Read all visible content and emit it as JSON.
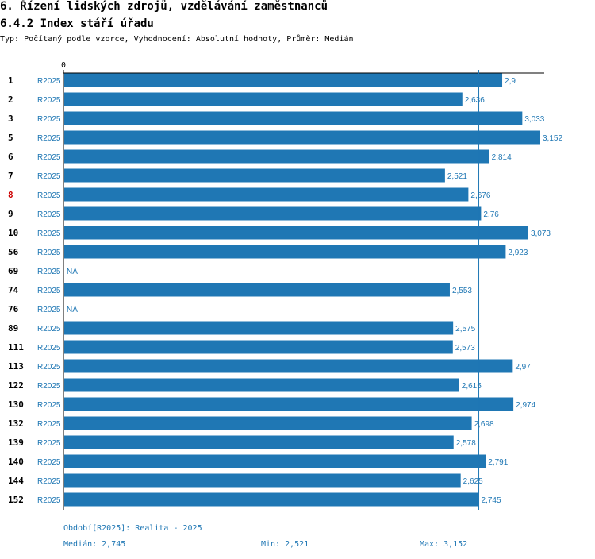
{
  "header": {
    "title": "6. Řízení lidských zdrojů, vzdělávání zaměstnanců",
    "subtitle": "6.4.2 Index stáří úřadu",
    "meta": "Typ: Počítaný podle vzorce, Vyhodnocení: Absolutní hodnoty, Průměr: Medián"
  },
  "chart_data": {
    "type": "bar",
    "orientation": "horizontal",
    "axis_zero_label": "0",
    "xlim": [
      0,
      3.2
    ],
    "median": 2.745,
    "highlight_category": "8",
    "categories": [
      "1",
      "2",
      "3",
      "5",
      "6",
      "7",
      "8",
      "9",
      "10",
      "56",
      "69",
      "74",
      "76",
      "89",
      "111",
      "113",
      "122",
      "130",
      "132",
      "139",
      "140",
      "144",
      "152"
    ],
    "periods": [
      "R2025",
      "R2025",
      "R2025",
      "R2025",
      "R2025",
      "R2025",
      "R2025",
      "R2025",
      "R2025",
      "R2025",
      "R2025",
      "R2025",
      "R2025",
      "R2025",
      "R2025",
      "R2025",
      "R2025",
      "R2025",
      "R2025",
      "R2025",
      "R2025",
      "R2025",
      "R2025"
    ],
    "values": [
      2.9,
      2.636,
      3.033,
      3.152,
      2.814,
      2.521,
      2.676,
      2.76,
      3.073,
      2.923,
      null,
      2.553,
      null,
      2.575,
      2.573,
      2.97,
      2.615,
      2.974,
      2.698,
      2.578,
      2.791,
      2.625,
      2.745
    ],
    "labels": [
      "2,9",
      "2,636",
      "3,033",
      "3,152",
      "2,814",
      "2,521",
      "2,676",
      "2,76",
      "3,073",
      "2,923",
      "NA",
      "2,553",
      "NA",
      "2,575",
      "2,573",
      "2,97",
      "2,615",
      "2,974",
      "2,698",
      "2,578",
      "2,791",
      "2,625",
      "2,745"
    ],
    "bar_color": "#1f77b4"
  },
  "footer": {
    "period_note": "Období[R2025]: Realita - 2025",
    "median_label": "Medián: 2,745",
    "min_label": "Min: 2,521",
    "max_label": "Max: 3,152"
  }
}
